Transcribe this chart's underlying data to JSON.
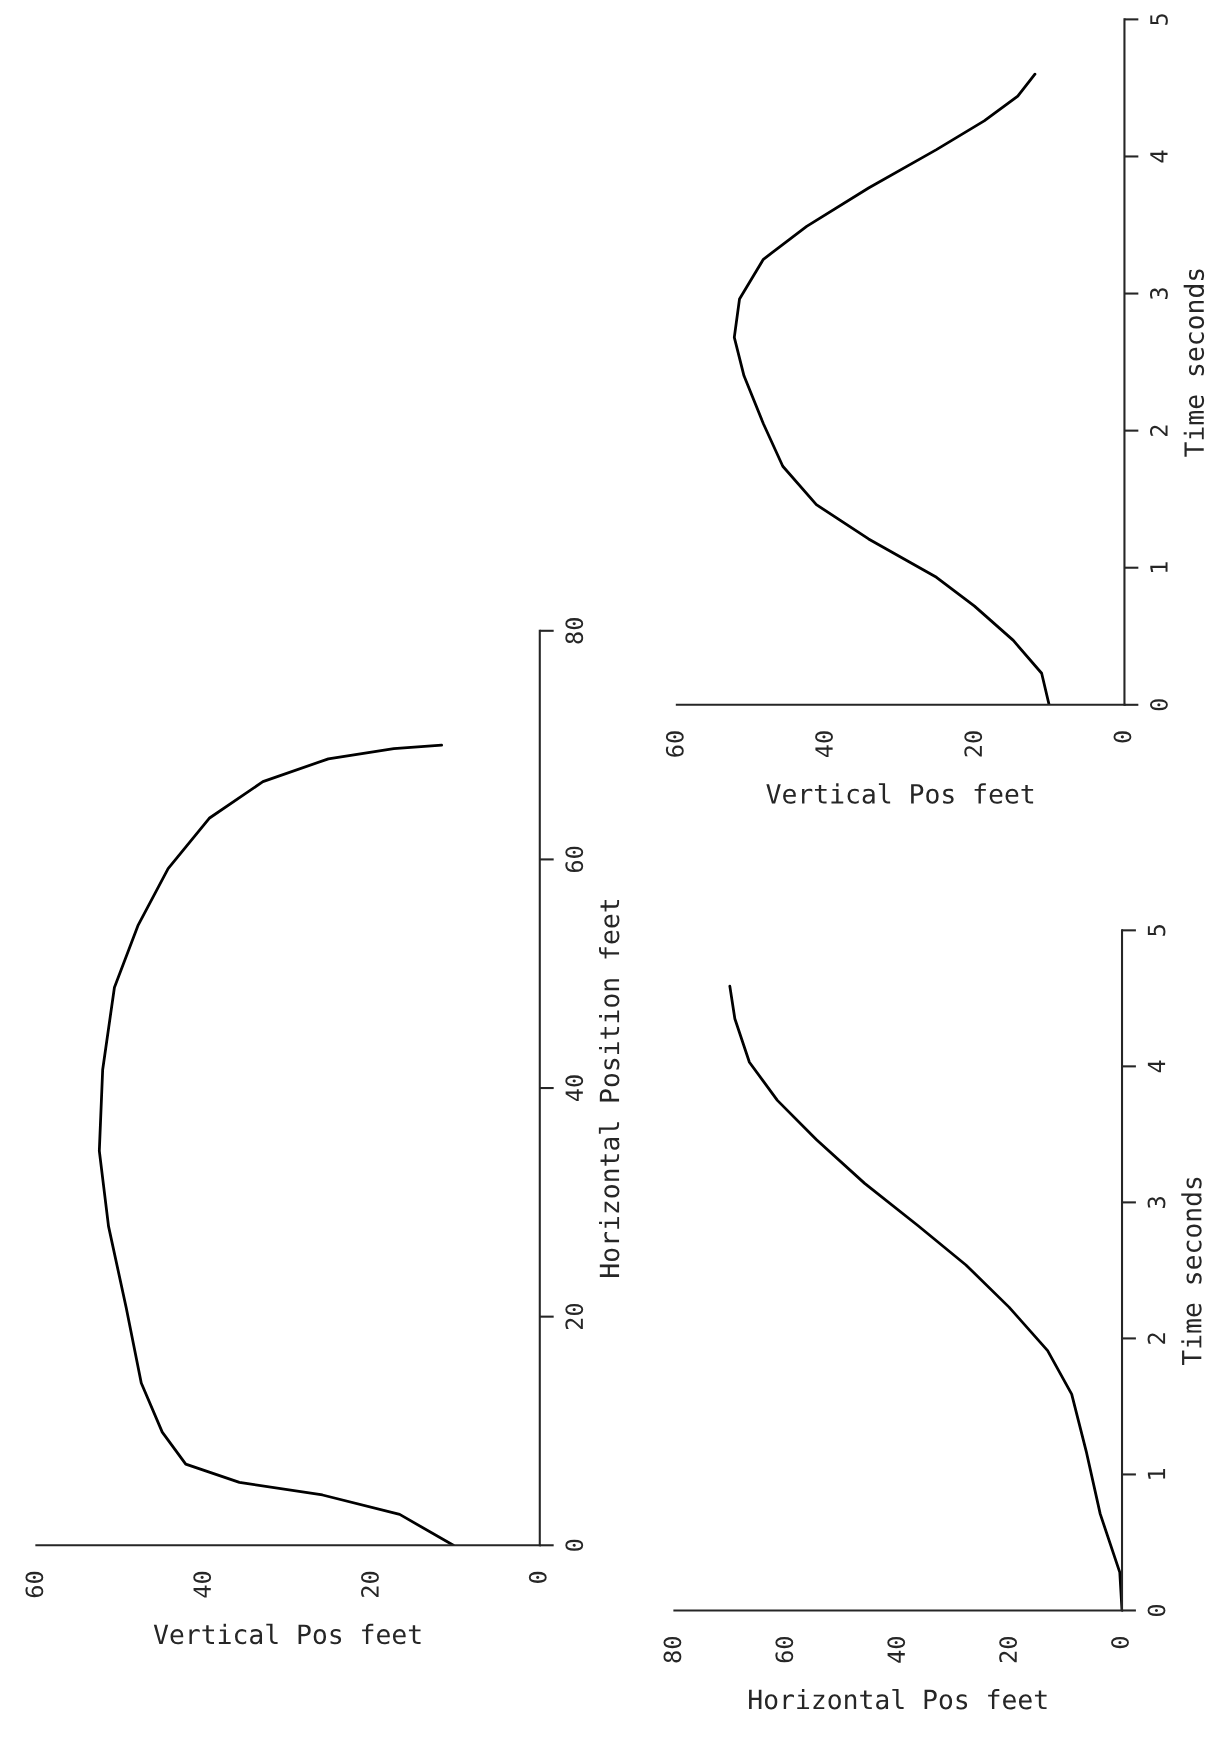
{
  "chart_data": [
    {
      "type": "line",
      "xlabel": "Vertical Pos feet",
      "ylabel": "Horizontal Position feet",
      "series": [
        {
          "color": "#000000",
          "x": [
            10.3,
            16.7,
            25.9,
            35.8,
            42.2,
            45,
            47.5,
            49.3,
            51.4,
            52.5,
            52.1,
            50.7,
            47.9,
            44.3,
            39.4,
            33,
            25.2,
            17.4,
            11.7
          ],
          "values": [
            0,
            2.7,
            4.4,
            5.5,
            7.1,
            9.9,
            14.2,
            20.8,
            27.9,
            34.5,
            41.6,
            48.8,
            54.2,
            59.2,
            63.6,
            66.8,
            68.8,
            69.7,
            70
          ]
        }
      ],
      "xlim": [
        60,
        0
      ],
      "xticks": [
        60,
        40,
        20,
        0
      ],
      "ylim": [
        0,
        80
      ],
      "yticks": [
        0,
        20,
        40,
        60,
        80
      ],
      "grid": false
    },
    {
      "type": "line",
      "xlabel": "Vertical Pos feet",
      "ylabel": "Time seconds",
      "series": [
        {
          "color": "#000000",
          "x": [
            10.1,
            11.1,
            14.9,
            20.1,
            25.2,
            34.3,
            41.3,
            45.8,
            48.4,
            51,
            52.3,
            51.6,
            48.4,
            42.6,
            34.3,
            25.2,
            18.8,
            14.3,
            12
          ],
          "values": [
            0,
            0.23,
            0.47,
            0.72,
            0.93,
            1.21,
            1.46,
            1.74,
            2.05,
            2.4,
            2.68,
            2.96,
            3.25,
            3.49,
            3.77,
            4.05,
            4.26,
            4.44,
            4.6
          ]
        }
      ],
      "xlim": [
        60,
        0
      ],
      "xticks": [
        60,
        40,
        20,
        0
      ],
      "ylim": [
        0,
        5
      ],
      "yticks": [
        0,
        1,
        2,
        3,
        4,
        5
      ],
      "grid": false
    },
    {
      "type": "line",
      "xlabel": "Horizontal Pos feet",
      "ylabel": "Time seconds",
      "series": [
        {
          "color": "#000000",
          "x": [
            0,
            0.4,
            3.9,
            6.4,
            9,
            13.3,
            20.2,
            27.9,
            36.5,
            46,
            54.6,
            61.6,
            66.6,
            69.2,
            70.1
          ],
          "values": [
            0,
            0.28,
            0.71,
            1.17,
            1.59,
            1.91,
            2.23,
            2.54,
            2.83,
            3.14,
            3.46,
            3.75,
            4.03,
            4.35,
            4.59
          ]
        }
      ],
      "xlim": [
        80,
        0
      ],
      "xticks": [
        80,
        60,
        40,
        20,
        0
      ],
      "ylim": [
        0,
        5
      ],
      "yticks": [
        0,
        1,
        2,
        3,
        4,
        5
      ],
      "grid": false
    }
  ]
}
